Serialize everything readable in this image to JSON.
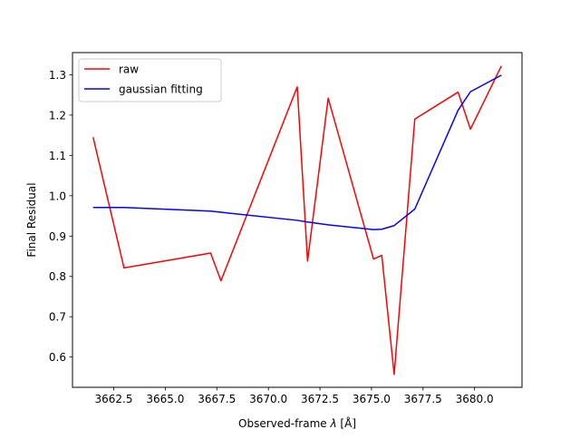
{
  "chart_data": {
    "type": "line",
    "title": "",
    "xlabel": "Observed-frame",
    "xlabel_symbol": "λ",
    "xlabel_unit": "[Å]",
    "ylabel": "Final Residual",
    "xlim": [
      3660.5,
      3682.3
    ],
    "ylim": [
      0.525,
      1.355
    ],
    "xticks": [
      3662.5,
      3665.0,
      3667.5,
      3670.0,
      3672.5,
      3675.0,
      3677.5,
      3680.0
    ],
    "xtick_labels": [
      "3662.5",
      "3665.0",
      "3667.5",
      "3670.0",
      "3672.5",
      "3675.0",
      "3677.5",
      "3680.0"
    ],
    "yticks": [
      0.6,
      0.7,
      0.8,
      0.9,
      1.0,
      1.1,
      1.2,
      1.3
    ],
    "ytick_labels": [
      "0.6",
      "0.7",
      "0.8",
      "0.9",
      "1.0",
      "1.1",
      "1.2",
      "1.3"
    ],
    "grid": false,
    "legend_position": "top-left",
    "series": [
      {
        "name": "raw",
        "color": "#ff0000",
        "x": [
          3661.5,
          3663.0,
          3667.2,
          3667.7,
          3671.4,
          3671.9,
          3672.9,
          3675.1,
          3675.5,
          3676.1,
          3677.1,
          3679.2,
          3679.8,
          3681.3
        ],
        "y": [
          1.145,
          0.821,
          0.858,
          0.789,
          1.27,
          0.838,
          1.242,
          0.843,
          0.852,
          0.557,
          1.19,
          1.257,
          1.165,
          1.322
        ]
      },
      {
        "name": "gaussian fitting",
        "color": "#0000ff",
        "x": [
          3661.5,
          3663.0,
          3667.2,
          3667.7,
          3671.4,
          3671.9,
          3672.9,
          3675.1,
          3675.5,
          3676.1,
          3677.1,
          3679.2,
          3679.8,
          3681.3
        ],
        "y": [
          0.971,
          0.971,
          0.962,
          0.959,
          0.939,
          0.935,
          0.928,
          0.916,
          0.917,
          0.926,
          0.967,
          1.212,
          1.258,
          1.299
        ]
      }
    ]
  }
}
